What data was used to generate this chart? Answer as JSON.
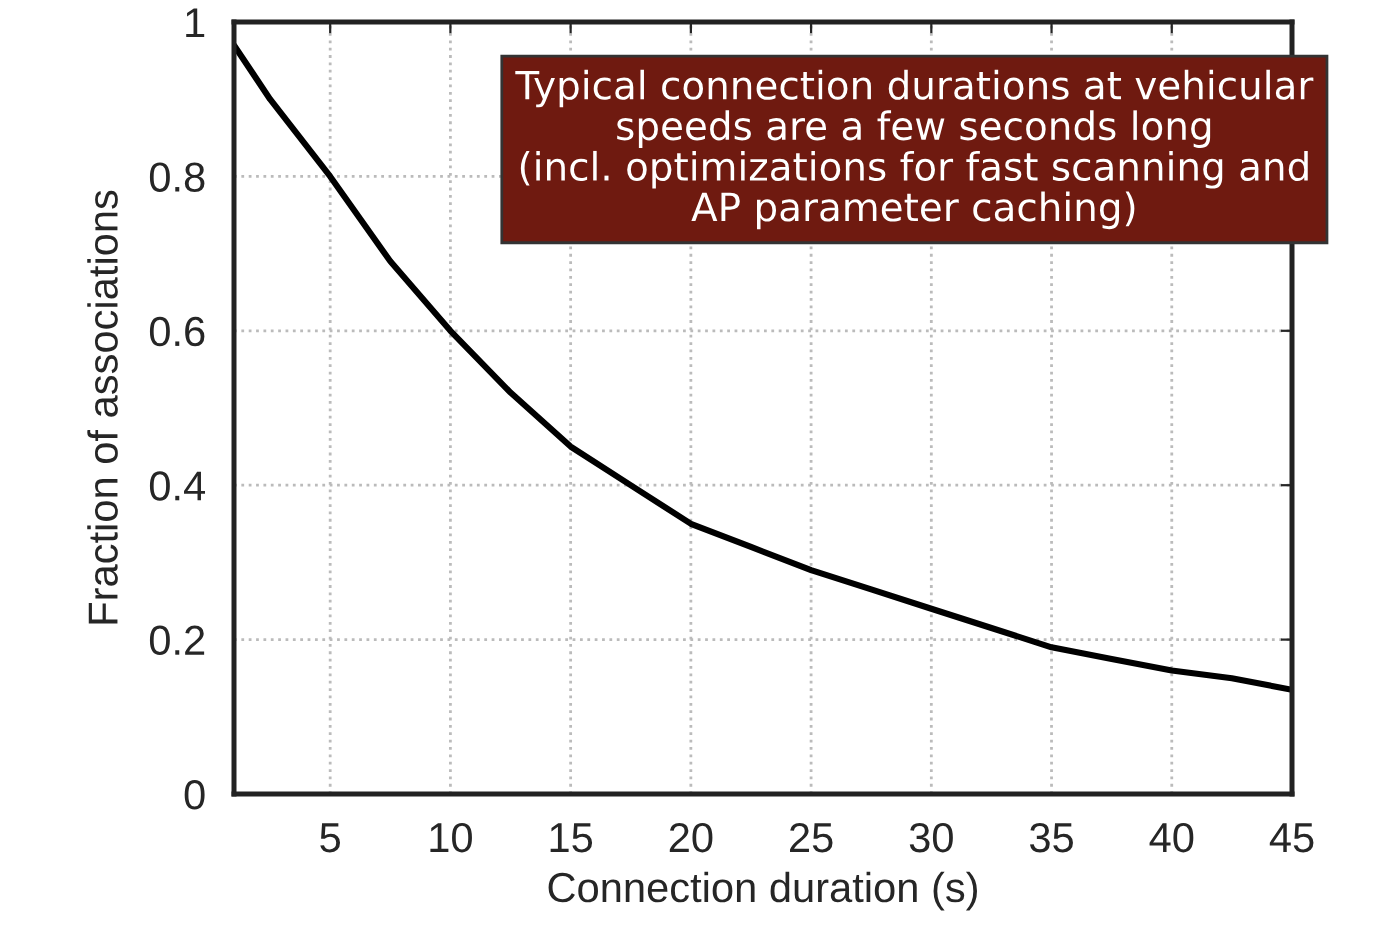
{
  "chart_data": {
    "type": "line",
    "xlabel": "Connection duration (s)",
    "ylabel": "Fraction of associations",
    "annotations": [
      "Typical connection durations at vehicular\nspeeds are a few seconds long\n(incl. optimizations for fast scanning and\nAP parameter caching)"
    ],
    "x": [
      1,
      2.5,
      5,
      7.5,
      10,
      12.5,
      15,
      17.5,
      20,
      22.5,
      25,
      27.5,
      30,
      32.5,
      35,
      37.5,
      40,
      42.5,
      45
    ],
    "series": [
      {
        "color": "#000000",
        "values": [
          0.97,
          0.9,
          0.8,
          0.69,
          0.6,
          0.52,
          0.45,
          0.4,
          0.35,
          0.32,
          0.29,
          0.265,
          0.24,
          0.215,
          0.19,
          0.175,
          0.16,
          0.15,
          0.135
        ]
      }
    ],
    "xlim": [
      1,
      45
    ],
    "ylim": [
      0,
      1
    ],
    "xticks": [
      5,
      10,
      15,
      20,
      25,
      30,
      35,
      40,
      45
    ],
    "yticks": [
      0,
      0.2,
      0.4,
      0.6,
      0.8,
      1
    ],
    "grid": true,
    "line_style": "solid",
    "legend": false
  }
}
